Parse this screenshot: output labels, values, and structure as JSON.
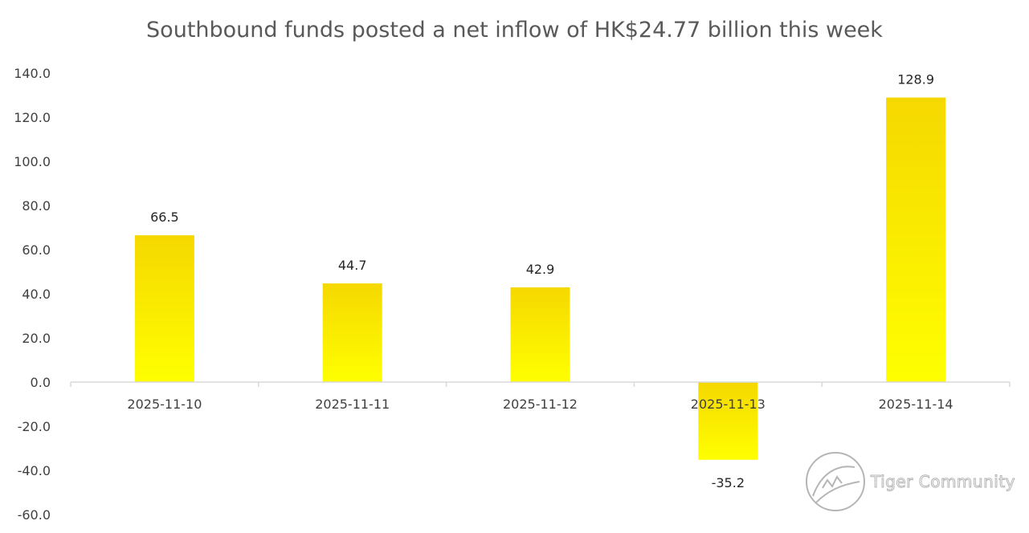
{
  "chart_data": {
    "type": "bar",
    "title": "Southbound funds posted a net inflow of HK$24.77 billion this week",
    "categories": [
      "2025-11-10",
      "2025-11-11",
      "2025-11-12",
      "2025-11-13",
      "2025-11-14"
    ],
    "values": [
      66.5,
      44.7,
      42.9,
      -35.2,
      128.9
    ],
    "data_labels": [
      "66.5",
      "44.7",
      "42.9",
      "-35.2",
      "128.9"
    ],
    "ylim": [
      -60,
      140
    ],
    "yticks": [
      140,
      120,
      100,
      80,
      60,
      40,
      20,
      0,
      -20,
      -40,
      -60
    ],
    "ytick_labels": [
      "140.0",
      "120.0",
      "100.0",
      "80.0",
      "60.0",
      "40.0",
      "20.0",
      "0.0",
      "-20.0",
      "-40.0",
      "-60.0"
    ],
    "xlabel": "",
    "ylabel": "",
    "grid": false,
    "legend": "none",
    "bar_gradient": [
      "#f5d800",
      "#ffff00"
    ],
    "axis_color": "#d9d9d9"
  },
  "watermark": {
    "text": "Tiger Community",
    "icon": "tiger-logo-icon"
  }
}
